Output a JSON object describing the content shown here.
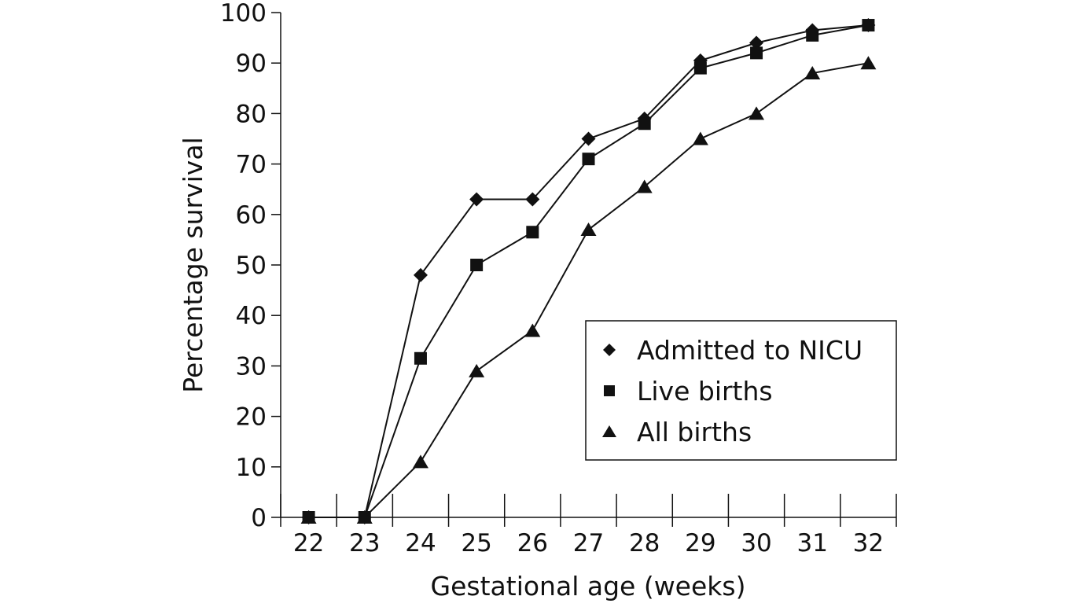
{
  "chart_data": {
    "type": "line",
    "title": "",
    "xlabel": "Gestational age (weeks)",
    "ylabel": "Percentage survival",
    "x": [
      22,
      23,
      24,
      25,
      26,
      27,
      28,
      29,
      30,
      31,
      32
    ],
    "xlim": [
      21.5,
      32.5
    ],
    "ylim": [
      0,
      100
    ],
    "yticks": [
      0,
      10,
      20,
      30,
      40,
      50,
      60,
      70,
      80,
      90,
      100
    ],
    "grid": false,
    "legend_placement": "lower-right",
    "series": [
      {
        "name": "Admitted to NICU",
        "marker": "diamond",
        "values": [
          0,
          0,
          48,
          63,
          63,
          75,
          79,
          90.5,
          94,
          96.5,
          97.5
        ]
      },
      {
        "name": "Live births",
        "marker": "square",
        "values": [
          0,
          0,
          31.5,
          50,
          56.5,
          71,
          78,
          89,
          92,
          95.5,
          97.5
        ]
      },
      {
        "name": "All births",
        "marker": "triangle",
        "values": [
          0,
          0,
          11,
          29,
          37,
          57,
          65.5,
          75,
          80,
          88,
          90
        ]
      }
    ],
    "colors": {
      "line": "#111111",
      "background": "#ffffff"
    }
  }
}
